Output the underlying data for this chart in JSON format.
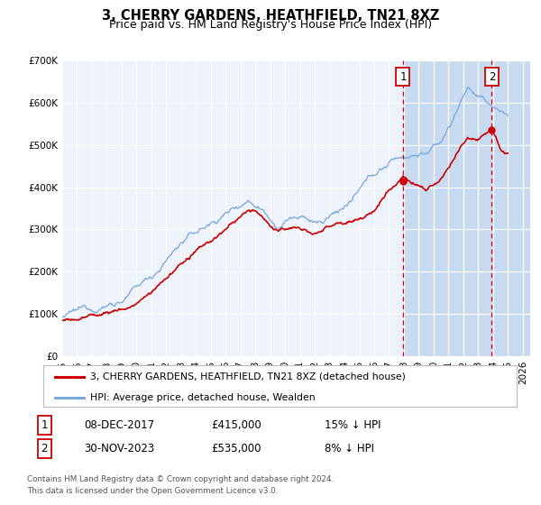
{
  "title": "3, CHERRY GARDENS, HEATHFIELD, TN21 8XZ",
  "subtitle": "Price paid vs. HM Land Registry's House Price Index (HPI)",
  "legend_label_red": "3, CHERRY GARDENS, HEATHFIELD, TN21 8XZ (detached house)",
  "legend_label_blue": "HPI: Average price, detached house, Wealden",
  "annotation1_date": "08-DEC-2017",
  "annotation1_price": "£415,000",
  "annotation1_hpi": "15% ↓ HPI",
  "annotation2_date": "30-NOV-2023",
  "annotation2_price": "£535,000",
  "annotation2_hpi": "8% ↓ HPI",
  "footnote1": "Contains HM Land Registry data © Crown copyright and database right 2024.",
  "footnote2": "This data is licensed under the Open Government Licence v3.0.",
  "red_color": "#cc0000",
  "blue_color": "#7aaadd",
  "blue_fill_color": "#c8daf0",
  "vline_color": "#cc0000",
  "background_color": "#ffffff",
  "plot_bg_color": "#eef2fa",
  "grid_color": "#ffffff",
  "ylim": [
    0,
    700000
  ],
  "xlim_start": 1995.0,
  "xlim_end": 2026.5,
  "sale1_x": 2017.94,
  "sale1_y": 415000,
  "sale2_x": 2023.92,
  "sale2_y": 535000,
  "title_fontsize": 10.5,
  "subtitle_fontsize": 9,
  "tick_fontsize": 7.5
}
